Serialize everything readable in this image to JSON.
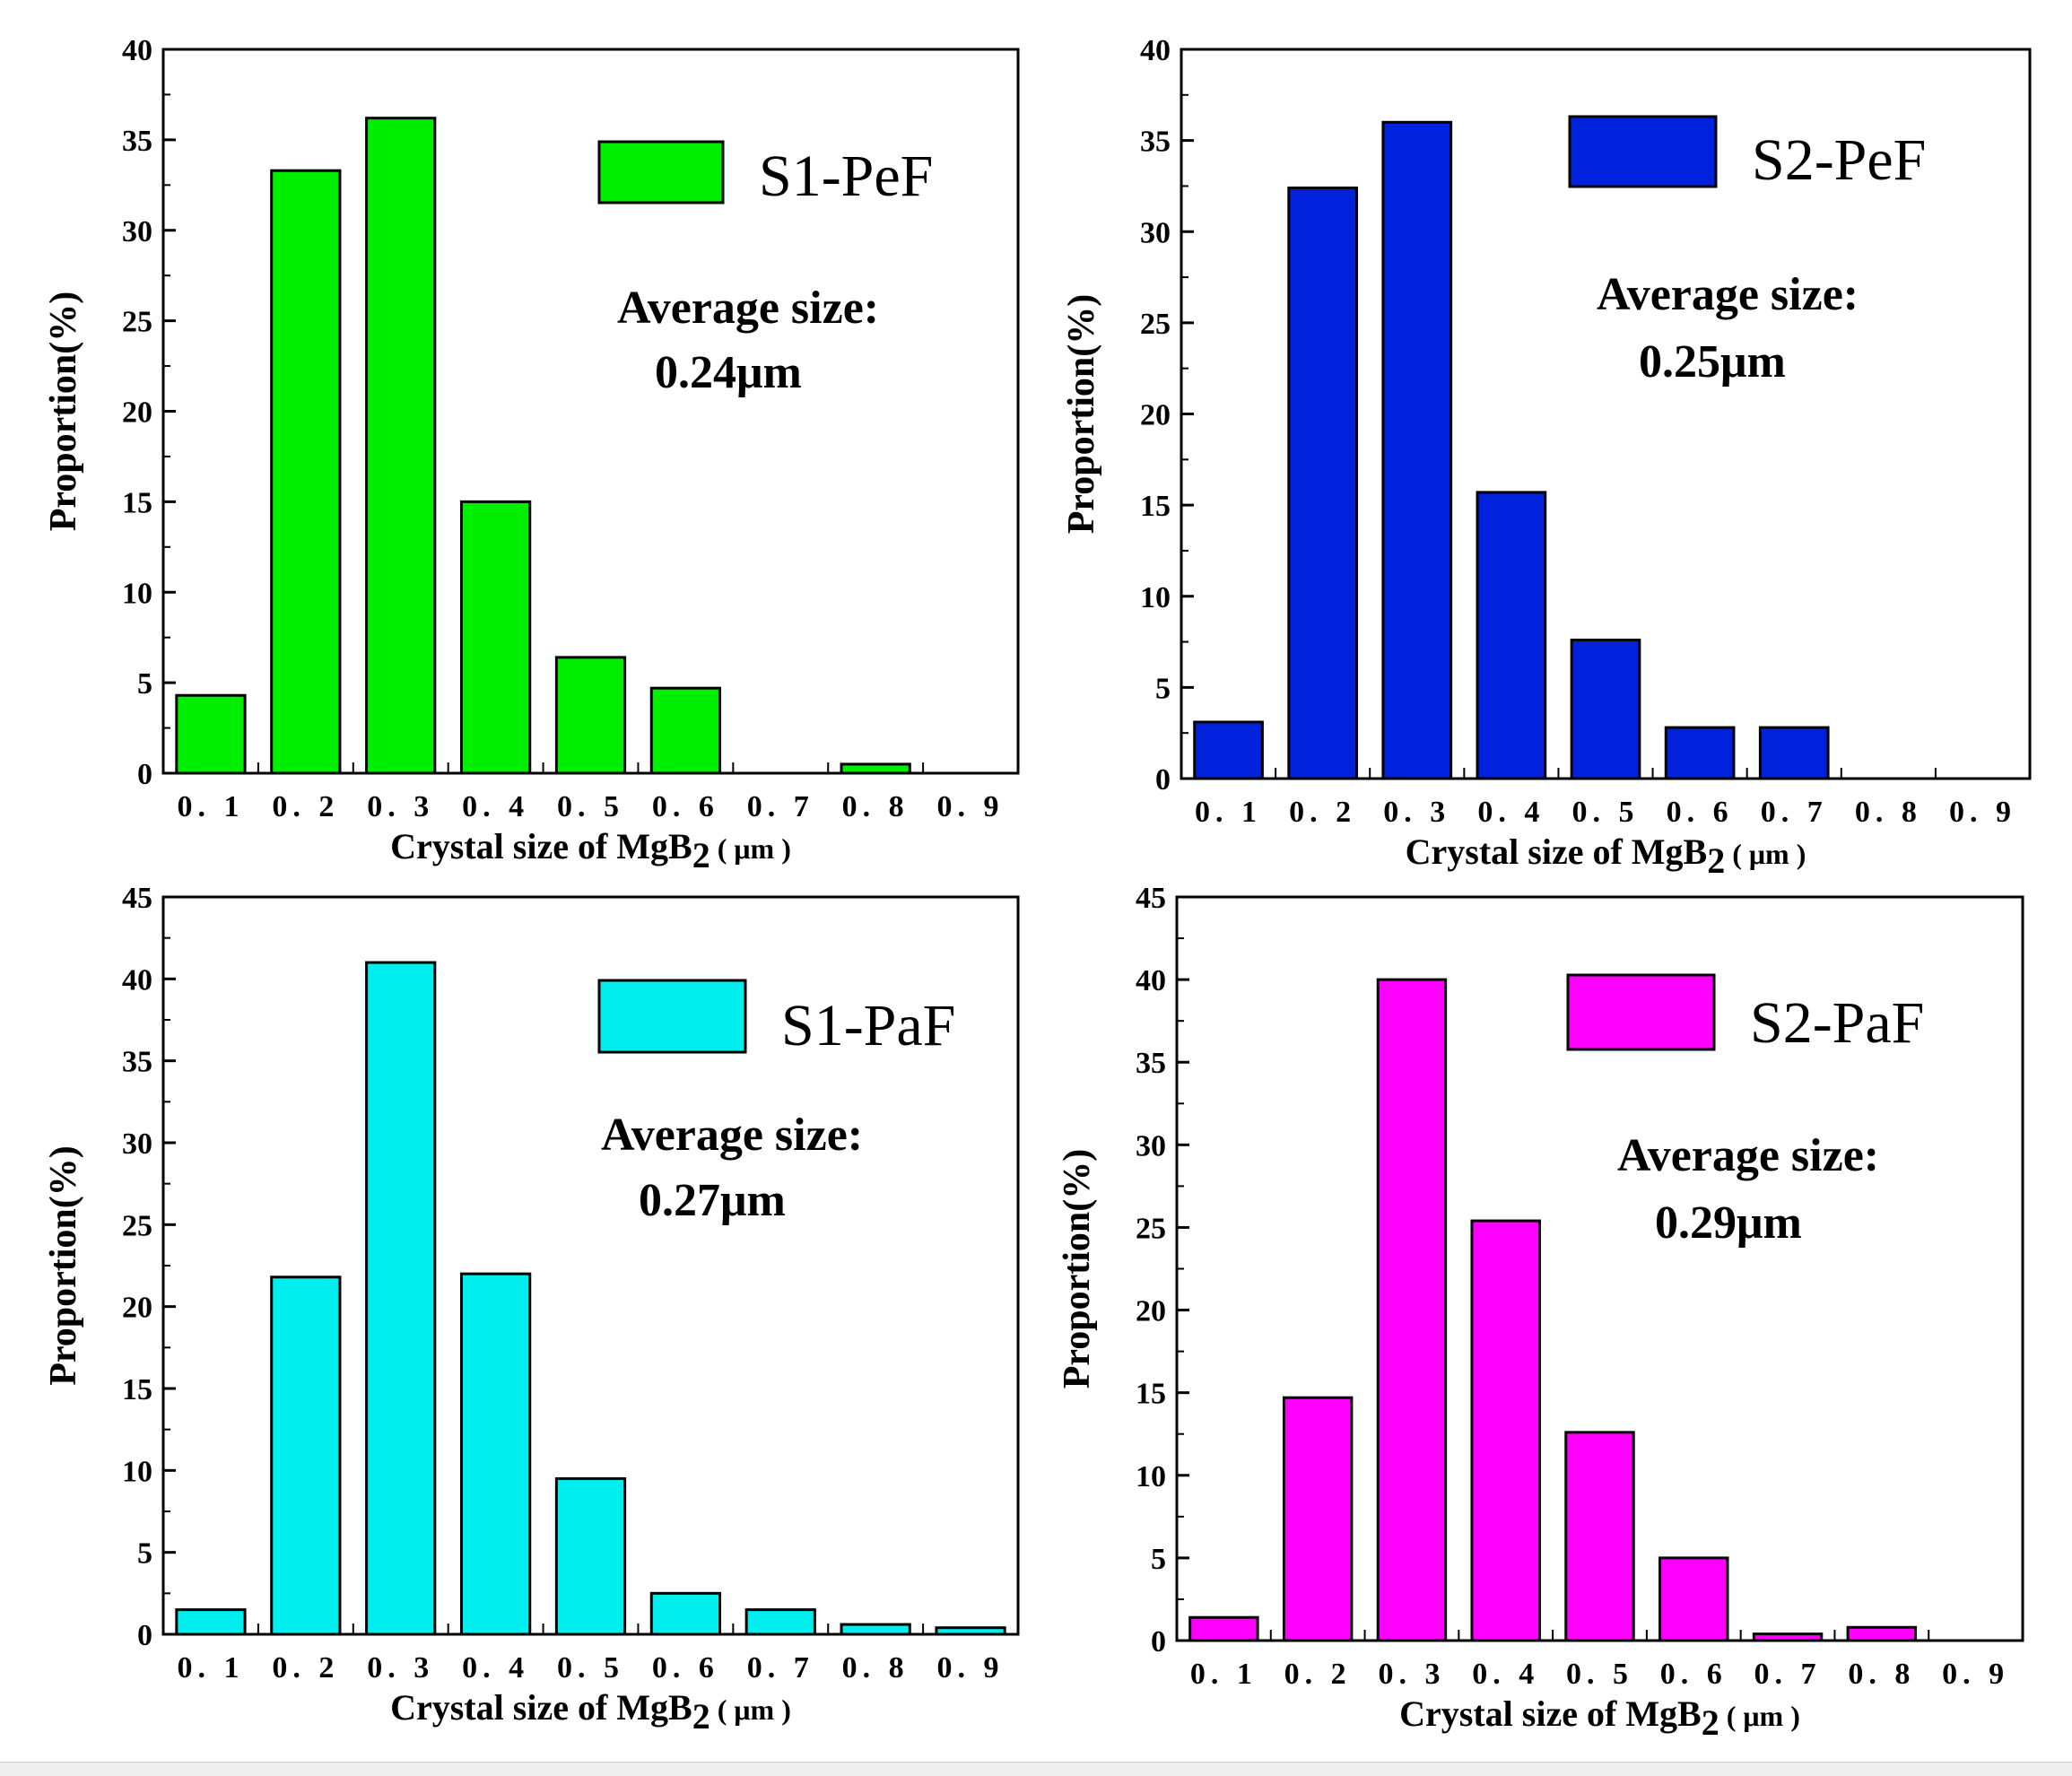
{
  "chart_data": [
    {
      "type": "bar",
      "legend": "S1-PeF",
      "color": "#00ee00",
      "annotation_line1": "Average size:",
      "annotation_line2": "0.24μm",
      "xlabel_prefix": "Crystal size of MgB",
      "xlabel_sub": "2",
      "xlabel_suffix": " ( μm )",
      "ylabel": "Proportion(%)",
      "categories": [
        "0. 1",
        "0. 2",
        "0. 3",
        "0. 4",
        "0. 5",
        "0. 6",
        "0. 7",
        "0. 8",
        "0. 9"
      ],
      "values": [
        4.3,
        33.3,
        36.2,
        15.0,
        6.4,
        4.7,
        0,
        0.5,
        0
      ],
      "ylim": [
        0,
        40
      ],
      "yticks": [
        "0",
        "5",
        "10",
        "15",
        "20",
        "25",
        "30",
        "35",
        "40"
      ]
    },
    {
      "type": "bar",
      "legend": "S2-PeF",
      "color": "#0022dd",
      "annotation_line1": "Average size:",
      "annotation_line2": "0.25μm",
      "xlabel_prefix": "Crystal size of MgB",
      "xlabel_sub": "2",
      "xlabel_suffix": " ( μm )",
      "ylabel": "Proportion(%)",
      "categories": [
        "0. 1",
        "0. 2",
        "0. 3",
        "0. 4",
        "0. 5",
        "0. 6",
        "0. 7",
        "0. 8",
        "0. 9"
      ],
      "values": [
        3.1,
        32.4,
        36.0,
        15.7,
        7.6,
        2.8,
        2.8,
        0,
        0
      ],
      "ylim": [
        0,
        40
      ],
      "yticks": [
        "0",
        "5",
        "10",
        "15",
        "20",
        "25",
        "30",
        "35",
        "40"
      ]
    },
    {
      "type": "bar",
      "legend": "S1-PaF",
      "color": "#00eeee",
      "annotation_line1": "Average size:",
      "annotation_line2": "0.27μm",
      "xlabel_prefix": "Crystal size of MgB",
      "xlabel_sub": "2",
      "xlabel_suffix": " ( μm )",
      "ylabel": "Proportion(%)",
      "categories": [
        "0. 1",
        "0. 2",
        "0. 3",
        "0. 4",
        "0. 5",
        "0. 6",
        "0. 7",
        "0. 8",
        "0. 9"
      ],
      "values": [
        1.5,
        21.8,
        41.0,
        22.0,
        9.5,
        2.5,
        1.5,
        0.6,
        0.4
      ],
      "ylim": [
        0,
        45
      ],
      "yticks": [
        "0",
        "5",
        "10",
        "15",
        "20",
        "25",
        "30",
        "35",
        "40",
        "45"
      ]
    },
    {
      "type": "bar",
      "legend": "S2-PaF",
      "color": "#ff00ff",
      "annotation_line1": "Average size:",
      "annotation_line2": "0.29μm",
      "xlabel_prefix": "Crystal size of MgB",
      "xlabel_sub": "2",
      "xlabel_suffix": " ( μm )",
      "ylabel": "Proportion(%)",
      "categories": [
        "0. 1",
        "0. 2",
        "0. 3",
        "0. 4",
        "0. 5",
        "0. 6",
        "0. 7",
        "0. 8",
        "0. 9"
      ],
      "values": [
        1.4,
        14.7,
        40.0,
        25.4,
        12.6,
        5.0,
        0.4,
        0.8,
        0
      ],
      "ylim": [
        0,
        45
      ],
      "yticks": [
        "0",
        "5",
        "10",
        "15",
        "20",
        "25",
        "30",
        "35",
        "40",
        "45"
      ]
    }
  ]
}
